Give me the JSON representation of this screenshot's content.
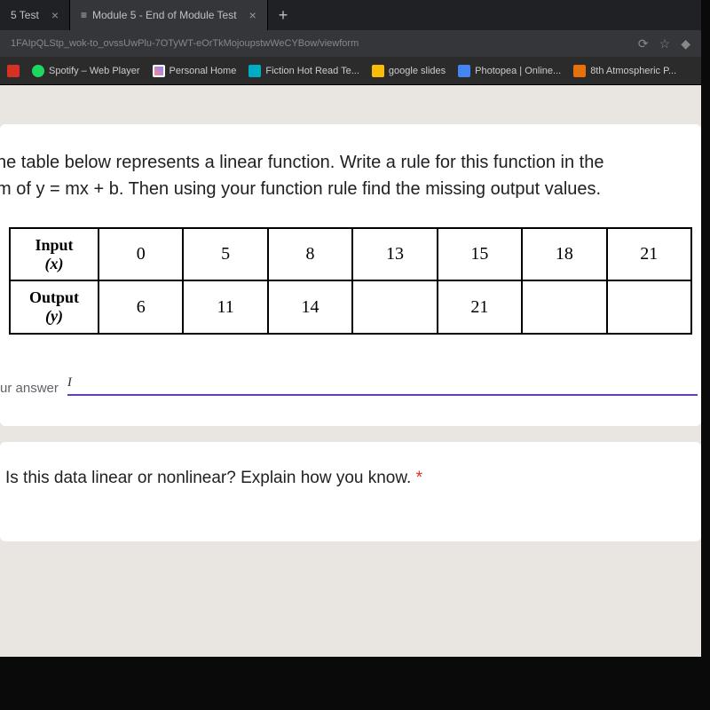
{
  "tabs": [
    {
      "label": "5 Test",
      "active": false
    },
    {
      "label": "Module 5 - End of Module Test",
      "active": true
    }
  ],
  "url": "1FAIpQLStp_wok-to_ovssUwPlu-7OTyWT-eOrTkMojoupstwWeCYBow/viewform",
  "bookmarks": [
    {
      "label": "Spotify – Web Player",
      "iconClass": "bm-green"
    },
    {
      "label": "Personal Home",
      "iconClass": "bm-check"
    },
    {
      "label": "Fiction Hot Read Te...",
      "iconClass": "bm-teal"
    },
    {
      "label": "google slides",
      "iconClass": "bm-yellow"
    },
    {
      "label": "Photopea | Online...",
      "iconClass": "bm-blue"
    },
    {
      "label": "8th Atmospheric P...",
      "iconClass": "bm-orange"
    }
  ],
  "question1_line1": "he table below represents a linear function. Write a rule for this function in the",
  "question1_line2": "m of y = mx + b. Then using your function rule find the missing output values.",
  "table": {
    "row_headers": {
      "input": "Input",
      "input_var": "(x)",
      "output": "Output",
      "output_var": "(y)"
    },
    "inputs": [
      "0",
      "5",
      "8",
      "13",
      "15",
      "18",
      "21"
    ],
    "outputs": [
      "6",
      "11",
      "14",
      "",
      "21",
      "",
      ""
    ]
  },
  "answer_label": "ur answer",
  "answer_placeholder": "I",
  "question2": "Is this data linear or nonlinear? Explain how you know.",
  "asterisk": "*",
  "styling": {
    "page_bg": "#e9e6e1",
    "card_bg": "#ffffff",
    "text_color": "#202124",
    "muted_text": "#5f6368",
    "border_color": "#000000",
    "underline_color": "#673ab7",
    "required_color": "#d93025",
    "browser_tab_bg": "#202124",
    "browser_active_tab": "#35363a",
    "browser_chrome": "#2b2b2b",
    "question_fontsize": 20,
    "table_fontsize": 20,
    "table_border_width": 2
  }
}
